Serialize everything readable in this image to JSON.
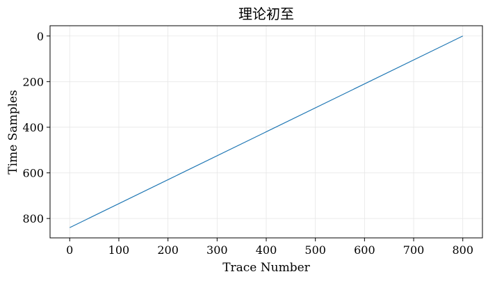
{
  "chart_data": {
    "type": "line",
    "title": "理论初至",
    "xlabel": "Trace Number",
    "ylabel": "Time Samples",
    "xlim": [
      -40,
      840
    ],
    "ylim": [
      885,
      -45
    ],
    "y_inverted": true,
    "grid": true,
    "x_ticks": [
      0,
      100,
      200,
      300,
      400,
      500,
      600,
      700,
      800
    ],
    "y_ticks": [
      0,
      200,
      400,
      600,
      800
    ],
    "x_tick_labels": [
      "0",
      "100",
      "200",
      "300",
      "400",
      "500",
      "600",
      "700",
      "800"
    ],
    "y_tick_labels": [
      "0",
      "200",
      "400",
      "600",
      "800"
    ],
    "colors": {
      "line": "#1f77b4",
      "grid": "#e6e6e6",
      "axes": "#000000"
    },
    "series": [
      {
        "x": [
          0,
          800
        ],
        "y": [
          840,
          0
        ]
      }
    ]
  }
}
